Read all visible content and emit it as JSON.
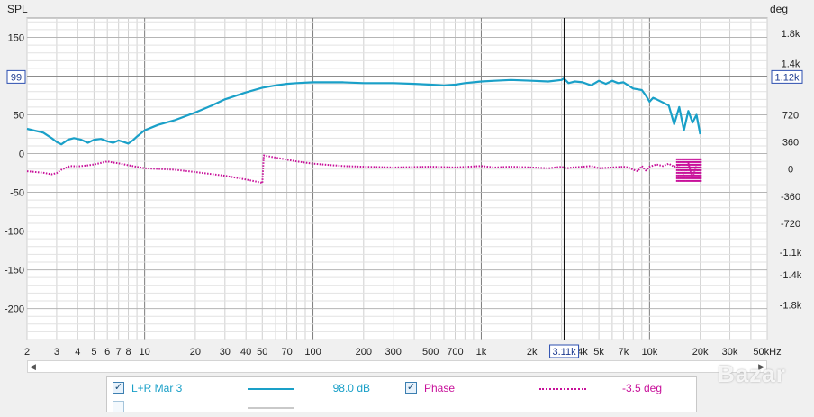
{
  "chart_data": {
    "type": "line",
    "title": "",
    "ylabel_left": "SPL",
    "ylabel_right": "deg",
    "x_scale": "log",
    "xlim": [
      2,
      50000
    ],
    "ylim_left": [
      -240,
      175
    ],
    "ylim_right": [
      -2260,
      2000
    ],
    "grid": true,
    "x_ticks": [
      {
        "value": 2,
        "label": "2"
      },
      {
        "value": 3,
        "label": "3"
      },
      {
        "value": 4,
        "label": "4"
      },
      {
        "value": 5,
        "label": "5"
      },
      {
        "value": 6,
        "label": "6"
      },
      {
        "value": 7,
        "label": "7"
      },
      {
        "value": 8,
        "label": "8"
      },
      {
        "value": 10,
        "label": "10"
      },
      {
        "value": 20,
        "label": "20"
      },
      {
        "value": 30,
        "label": "30"
      },
      {
        "value": 40,
        "label": "40"
      },
      {
        "value": 50,
        "label": "50"
      },
      {
        "value": 70,
        "label": "70"
      },
      {
        "value": 100,
        "label": "100"
      },
      {
        "value": 200,
        "label": "200"
      },
      {
        "value": 300,
        "label": "300"
      },
      {
        "value": 500,
        "label": "500"
      },
      {
        "value": 700,
        "label": "700"
      },
      {
        "value": 1000,
        "label": "1k"
      },
      {
        "value": 2000,
        "label": "2k"
      },
      {
        "value": 4000,
        "label": "4k"
      },
      {
        "value": 5000,
        "label": "5k"
      },
      {
        "value": 7000,
        "label": "7k"
      },
      {
        "value": 10000,
        "label": "10k"
      },
      {
        "value": 20000,
        "label": "20k"
      },
      {
        "value": 30000,
        "label": "30k"
      },
      {
        "value": 50000,
        "label": "50kHz"
      }
    ],
    "y_left_ticks": [
      {
        "value": 150,
        "label": "150"
      },
      {
        "value": 100,
        "label": "100"
      },
      {
        "value": 50,
        "label": "50"
      },
      {
        "value": 0,
        "label": "0"
      },
      {
        "value": -50,
        "label": "-50"
      },
      {
        "value": -100,
        "label": "-100"
      },
      {
        "value": -150,
        "label": "-150"
      },
      {
        "value": -200,
        "label": "-200"
      }
    ],
    "y_right_ticks": [
      {
        "value": 1800,
        "label": "1.8k"
      },
      {
        "value": 1400,
        "label": "1.4k"
      },
      {
        "value": 720,
        "label": "720"
      },
      {
        "value": 360,
        "label": "360"
      },
      {
        "value": 0,
        "label": "0"
      },
      {
        "value": -360,
        "label": "-360"
      },
      {
        "value": -720,
        "label": "-720"
      },
      {
        "value": -1100,
        "label": "-1.1k"
      },
      {
        "value": -1400,
        "label": "-1.4k"
      },
      {
        "value": -1800,
        "label": "-1.8k"
      }
    ],
    "cursor": {
      "x": 3110,
      "x_label": "3.11k",
      "y_left": 99,
      "y_left_label": "99",
      "y_right_label": "1.12k"
    },
    "series": [
      {
        "name": "L+R Mar 3",
        "axis": "left",
        "color": "#1aa0c8",
        "style": "solid",
        "x": [
          2,
          2.5,
          2.8,
          3,
          3.2,
          3.5,
          3.8,
          4.2,
          4.6,
          5,
          5.5,
          6,
          6.5,
          7,
          7.5,
          8,
          8.5,
          9,
          10,
          12,
          15,
          20,
          25,
          30,
          40,
          50,
          60,
          70,
          80,
          100,
          150,
          200,
          300,
          400,
          500,
          600,
          700,
          800,
          900,
          1000,
          1200,
          1500,
          2000,
          2500,
          3000,
          3100,
          3300,
          3600,
          4000,
          4500,
          5000,
          5500,
          6000,
          6500,
          7000,
          8000,
          9000,
          9500,
          10000,
          10500,
          11000,
          12000,
          13000,
          14000,
          15000,
          16000,
          17000,
          18000,
          19000,
          20000
        ],
        "y": [
          32,
          27,
          20,
          15,
          12,
          18,
          20,
          18,
          14,
          18,
          19,
          16,
          14,
          17,
          15,
          13,
          17,
          22,
          30,
          37,
          43,
          53,
          62,
          70,
          79,
          85,
          88,
          90,
          91,
          92,
          92,
          91,
          91,
          90,
          89,
          88,
          89,
          91,
          92,
          93,
          94,
          95,
          94,
          93,
          95,
          97,
          91,
          93,
          92,
          88,
          94,
          90,
          94,
          91,
          92,
          84,
          82,
          75,
          67,
          72,
          70,
          66,
          62,
          38,
          60,
          30,
          55,
          40,
          50,
          25
        ]
      },
      {
        "name": "Phase",
        "axis": "right",
        "color": "#c8109a",
        "style": "dotted",
        "x": [
          2,
          2.5,
          2.8,
          3,
          3.2,
          3.6,
          4,
          4.5,
          5,
          5.5,
          6,
          6.5,
          7,
          8,
          10,
          15,
          20,
          30,
          40,
          49,
          50,
          51,
          60,
          80,
          100,
          150,
          200,
          300,
          500,
          700,
          1000,
          1200,
          1500,
          2000,
          2500,
          3000,
          3200,
          3500,
          4000,
          4500,
          5000,
          6000,
          7000,
          7500,
          8000,
          8500,
          9000,
          9500,
          10000,
          11000,
          12000,
          13000,
          14000,
          15000,
          16000,
          17000,
          18000,
          19000,
          20000
        ],
        "y": [
          -30,
          -50,
          -70,
          -55,
          -10,
          40,
          35,
          45,
          60,
          80,
          100,
          85,
          75,
          50,
          10,
          -10,
          -40,
          -90,
          -140,
          -180,
          -190,
          180,
          150,
          100,
          70,
          40,
          30,
          20,
          30,
          20,
          40,
          20,
          30,
          20,
          10,
          30,
          10,
          20,
          30,
          40,
          10,
          20,
          30,
          20,
          -10,
          -30,
          40,
          -20,
          30,
          60,
          40,
          70,
          30,
          60,
          -100,
          80,
          -120,
          40,
          -150
        ]
      }
    ],
    "legend": [
      {
        "name": "L+R Mar 3",
        "value": "98.0 dB",
        "checked": true
      },
      {
        "name": "Phase",
        "value": "-3.5 deg",
        "checked": true
      }
    ]
  },
  "ui": {
    "checkbox_mark": "✓",
    "scroll_left_glyph": "◀",
    "scroll_right_glyph": "▶",
    "watermark": "Bazar"
  }
}
